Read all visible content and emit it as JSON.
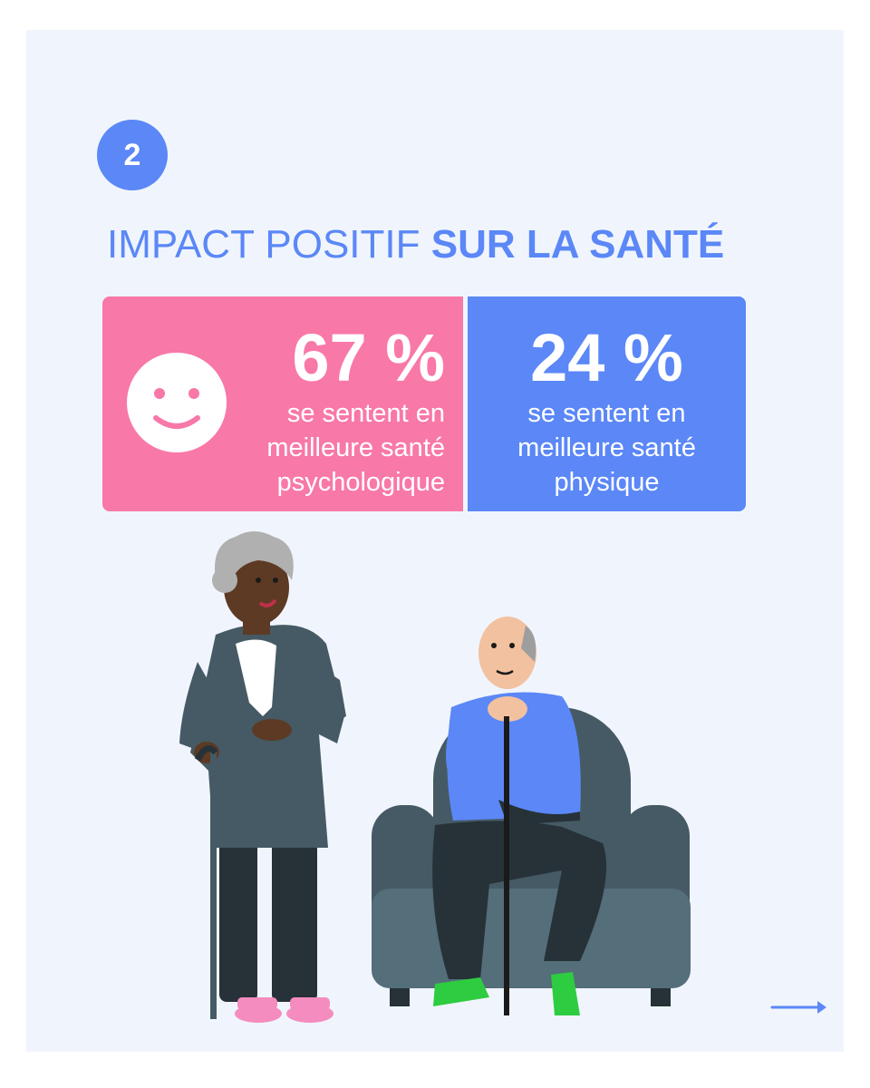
{
  "step": {
    "number": "2"
  },
  "title": {
    "light": "IMPACT POSITIF",
    "bold": "SUR LA SANTÉ"
  },
  "stats": [
    {
      "value": "67 %",
      "lines": [
        "se sentent en",
        "meilleure santé",
        "psychologique"
      ],
      "color": "#f878a8",
      "icon": "smiley-icon"
    },
    {
      "value": "24 %",
      "lines": [
        "se sentent en",
        "meilleure santé",
        "physique"
      ],
      "color": "#5b87f7"
    }
  ],
  "illustration": {
    "subjects": [
      "elderly-woman-with-cane",
      "elderly-man-in-armchair-with-cane"
    ]
  },
  "navigation": {
    "next_icon": "arrow-right-icon"
  },
  "colors": {
    "accent": "#5b87f7",
    "pink": "#f878a8",
    "background": "#f0f5fd"
  }
}
